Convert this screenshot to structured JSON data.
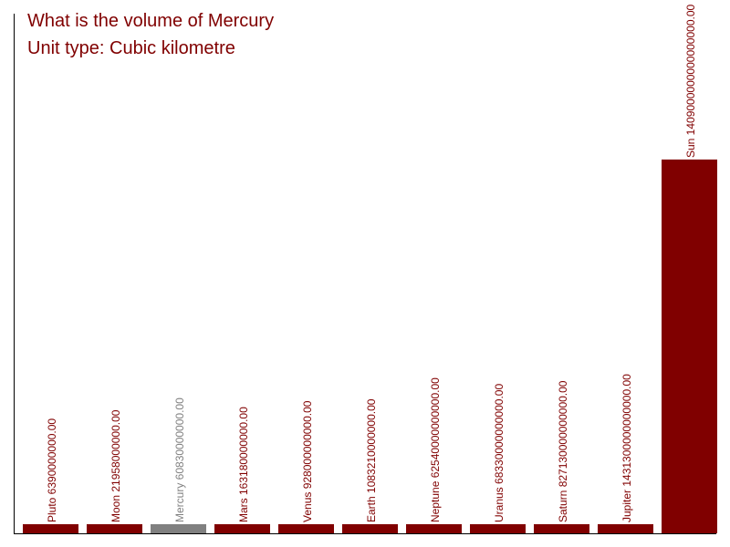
{
  "colors": {
    "bar": "#800000",
    "highlight_bar": "#808080",
    "title": "#800000",
    "axis": "#000000",
    "background": "#ffffff"
  },
  "chart_data": {
    "type": "bar",
    "title": "What is the volume of Mercury",
    "subtitle": "Unit type: Cubic kilometre",
    "xlabel": "",
    "ylabel": "",
    "highlight": "Mercury",
    "categories": [
      "Pluto",
      "Moon",
      "Mercury",
      "Mars",
      "Venus",
      "Earth",
      "Neptune",
      "Uranus",
      "Saturn",
      "Jupiter",
      "Sun"
    ],
    "values": [
      6390000000,
      21958000000,
      60830000000,
      163180000000,
      928000000000,
      1083210000000,
      62540000000000,
      68330000000000,
      827130000000000,
      1431300000000000,
      1409000000000000000
    ],
    "value_labels": [
      "6390000000.00",
      "21958000000.00",
      "60830000000.00",
      "163180000000.00",
      "928000000000.00",
      "1083210000000.00",
      "62540000000000.00",
      "68330000000000.00",
      "827130000000000.00",
      "1431300000000000.00",
      "1409000000000000000.00"
    ],
    "ylim": [
      0,
      1409000000000000000
    ],
    "grid": false,
    "legend": "none"
  }
}
